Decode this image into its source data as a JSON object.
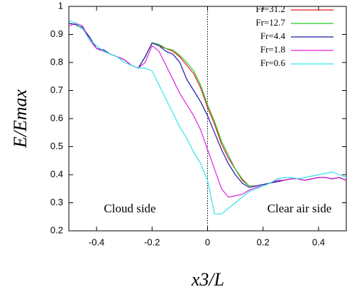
{
  "chart_data": {
    "type": "line",
    "xlabel": "x3/L",
    "ylabel": "E/Emax",
    "annotations": [
      "Cloud side",
      "Clear air side"
    ],
    "vline_x": 0,
    "legend": "upper right",
    "xlim": [
      -0.5,
      0.5
    ],
    "ylim": [
      0.2,
      1
    ],
    "xticks": [
      -0.4,
      -0.2,
      0,
      0.2,
      0.4
    ],
    "yticks": [
      0.2,
      0.3,
      0.4,
      0.5,
      0.6,
      0.7,
      0.8,
      0.9,
      1
    ],
    "x": [
      -0.5,
      -0.475,
      -0.45,
      -0.425,
      -0.4,
      -0.375,
      -0.35,
      -0.325,
      -0.3,
      -0.275,
      -0.25,
      -0.225,
      -0.2,
      -0.175,
      -0.15,
      -0.125,
      -0.1,
      -0.075,
      -0.05,
      -0.025,
      0,
      0.025,
      0.05,
      0.075,
      0.1,
      0.125,
      0.15,
      0.175,
      0.2,
      0.225,
      0.25,
      0.275,
      0.3,
      0.325,
      0.35,
      0.375,
      0.4,
      0.425,
      0.45,
      0.475,
      0.5
    ],
    "series": [
      {
        "name": "Fr=31.2",
        "color": "#e41a1c",
        "values": [
          0.94,
          0.935,
          0.92,
          0.89,
          0.85,
          0.84,
          0.83,
          0.82,
          0.81,
          0.79,
          0.78,
          0.82,
          0.87,
          0.86,
          0.85,
          0.84,
          0.82,
          0.79,
          0.76,
          0.71,
          0.64,
          0.58,
          0.51,
          0.46,
          0.42,
          0.38,
          0.36,
          0.36,
          0.365,
          0.37,
          0.375,
          0.38,
          0.385,
          0.385,
          0.38,
          0.385,
          0.39,
          0.39,
          0.385,
          0.39,
          0.38
        ]
      },
      {
        "name": "Fr=12.7",
        "color": "#22cc22",
        "values": [
          0.94,
          0.935,
          0.92,
          0.89,
          0.85,
          0.84,
          0.83,
          0.82,
          0.81,
          0.79,
          0.78,
          0.82,
          0.87,
          0.865,
          0.85,
          0.845,
          0.825,
          0.8,
          0.77,
          0.72,
          0.65,
          0.59,
          0.52,
          0.47,
          0.42,
          0.385,
          0.36,
          0.36,
          0.365,
          0.37,
          0.375,
          0.38,
          0.385,
          0.385,
          0.38,
          0.385,
          0.39,
          0.39,
          0.385,
          0.39,
          0.38
        ]
      },
      {
        "name": "Fr=4.4",
        "color": "#1a1aa8",
        "values": [
          0.94,
          0.935,
          0.925,
          0.89,
          0.85,
          0.845,
          0.83,
          0.82,
          0.81,
          0.79,
          0.78,
          0.82,
          0.87,
          0.86,
          0.84,
          0.83,
          0.8,
          0.74,
          0.7,
          0.66,
          0.61,
          0.55,
          0.49,
          0.44,
          0.4,
          0.37,
          0.355,
          0.36,
          0.365,
          0.37,
          0.375,
          0.38,
          0.385,
          0.385,
          0.38,
          0.385,
          0.39,
          0.39,
          0.385,
          0.39,
          0.38
        ]
      },
      {
        "name": "Fr=1.8",
        "color": "#dd22dd",
        "values": [
          0.93,
          0.94,
          0.93,
          0.88,
          0.85,
          0.84,
          0.83,
          0.82,
          0.81,
          0.79,
          0.78,
          0.8,
          0.86,
          0.84,
          0.79,
          0.74,
          0.69,
          0.65,
          0.61,
          0.56,
          0.49,
          0.42,
          0.35,
          0.32,
          0.325,
          0.33,
          0.345,
          0.355,
          0.36,
          0.37,
          0.38,
          0.38,
          0.385,
          0.385,
          0.38,
          0.385,
          0.39,
          0.39,
          0.385,
          0.39,
          0.38
        ]
      },
      {
        "name": "Fr=0.6",
        "color": "#33e6e6",
        "values": [
          0.95,
          0.94,
          0.92,
          0.88,
          0.86,
          0.84,
          0.83,
          0.82,
          0.8,
          0.79,
          0.78,
          0.78,
          0.77,
          0.72,
          0.67,
          0.62,
          0.57,
          0.53,
          0.48,
          0.44,
          0.38,
          0.26,
          0.26,
          0.28,
          0.3,
          0.32,
          0.34,
          0.35,
          0.36,
          0.37,
          0.385,
          0.39,
          0.39,
          0.385,
          0.39,
          0.395,
          0.4,
          0.405,
          0.41,
          0.4,
          0.39
        ]
      }
    ]
  }
}
